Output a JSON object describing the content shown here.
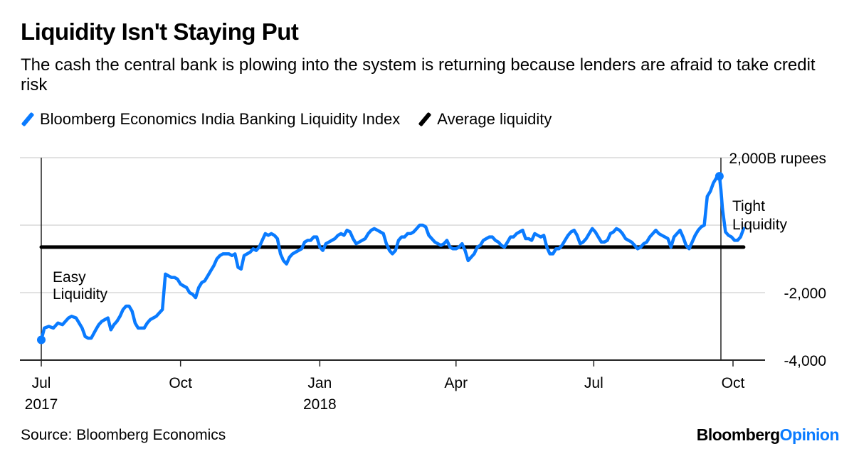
{
  "title": "Liquidity Isn't Staying Put",
  "subtitle": "The cash the central bank is plowing into the system is returning because lenders are afraid to take credit risk",
  "legend": [
    {
      "label": "Bloomberg Economics India Banking Liquidity Index",
      "color": "#0a7bff"
    },
    {
      "label": "Average liquidity",
      "color": "#000000"
    }
  ],
  "source": "Source: Bloomberg Economics",
  "brand": {
    "part1": "Bloomberg",
    "part2": "Opinion",
    "part2_color": "#0a7bff"
  },
  "chart_data": {
    "type": "line",
    "title": "Liquidity Isn't Staying Put",
    "xlabel": "",
    "ylabel": "B rupees",
    "y_unit_label": "2,000B rupees",
    "ylim": [
      -4000,
      2000
    ],
    "yticks": [
      2000,
      0,
      -2000,
      -4000
    ],
    "ytick_labels": [
      "2,000B rupees",
      "",
      "-2,000",
      "-4,000"
    ],
    "x_start": "2017-07-01",
    "x_unit": "days since 2017-07-01",
    "xlim": [
      0,
      470
    ],
    "xticks": [
      {
        "day": 0,
        "label": "Jul",
        "sub": "2017"
      },
      {
        "day": 92,
        "label": "Oct",
        "sub": ""
      },
      {
        "day": 184,
        "label": "Jan",
        "sub": "2018"
      },
      {
        "day": 274,
        "label": "Apr",
        "sub": ""
      },
      {
        "day": 365,
        "label": "Jul",
        "sub": ""
      },
      {
        "day": 457,
        "label": "Oct",
        "sub": ""
      }
    ],
    "grid": true,
    "legend_position": "top-left",
    "average_liquidity": -650,
    "reference_lines": [
      {
        "day": 0
      },
      {
        "day": 449
      }
    ],
    "annotations": [
      {
        "text": "Easy",
        "line2": "Liquidity",
        "near": "start"
      },
      {
        "text": "Tight",
        "line2": "Liquidity",
        "near": "end"
      }
    ],
    "series": [
      {
        "name": "Bloomberg Economics India Banking Liquidity Index",
        "color": "#0a7bff",
        "x": [
          0,
          2,
          5,
          8,
          11,
          14,
          16,
          18,
          20,
          23,
          25,
          27,
          29,
          31,
          33,
          36,
          38,
          40,
          42,
          44,
          46,
          48,
          50,
          52,
          54,
          56,
          58,
          60,
          62,
          64,
          66,
          68,
          70,
          72,
          74,
          76,
          78,
          80,
          82,
          84,
          86,
          88,
          90,
          92,
          94,
          96,
          98,
          100,
          102,
          104,
          106,
          108,
          110,
          112,
          114,
          116,
          118,
          120,
          122,
          124,
          126,
          128,
          130,
          132,
          134,
          136,
          138,
          140,
          142,
          144,
          146,
          148,
          150,
          152,
          154,
          156,
          158,
          160,
          162,
          164,
          166,
          168,
          170,
          172,
          174,
          176,
          178,
          180,
          182,
          184,
          186,
          188,
          190,
          192,
          194,
          196,
          198,
          200,
          202,
          204,
          206,
          208,
          210,
          212,
          214,
          216,
          218,
          220,
          222,
          224,
          226,
          228,
          230,
          232,
          234,
          236,
          238,
          240,
          242,
          244,
          246,
          248,
          250,
          252,
          254,
          256,
          258,
          260,
          262,
          264,
          266,
          268,
          270,
          272,
          274,
          276,
          278,
          280,
          282,
          284,
          286,
          288,
          290,
          292,
          294,
          296,
          298,
          300,
          302,
          304,
          306,
          308,
          310,
          312,
          314,
          316,
          318,
          320,
          322,
          324,
          326,
          328,
          330,
          332,
          334,
          336,
          338,
          340,
          342,
          344,
          346,
          348,
          350,
          352,
          354,
          356,
          358,
          360,
          362,
          364,
          366,
          368,
          370,
          372,
          374,
          376,
          378,
          380,
          382,
          384,
          386,
          388,
          390,
          392,
          394,
          396,
          398,
          400,
          402,
          404,
          406,
          408,
          410,
          412,
          414,
          416,
          418,
          420,
          422,
          424,
          426,
          428,
          430,
          432,
          434,
          436,
          438,
          440,
          442,
          444,
          446,
          448,
          449,
          450,
          452,
          454,
          456,
          458,
          460,
          462,
          464
        ],
        "values": [
          -3400,
          -3050,
          -3000,
          -3050,
          -2900,
          -2950,
          -2850,
          -2750,
          -2700,
          -2750,
          -2900,
          -3050,
          -3300,
          -3350,
          -3350,
          -3100,
          -2950,
          -2850,
          -2800,
          -2750,
          -3100,
          -2950,
          -2850,
          -2700,
          -2500,
          -2400,
          -2400,
          -2550,
          -2900,
          -3050,
          -3050,
          -3050,
          -2900,
          -2800,
          -2750,
          -2700,
          -2600,
          -2500,
          -1450,
          -1500,
          -1550,
          -1550,
          -1600,
          -1750,
          -1800,
          -1850,
          -2000,
          -2050,
          -2150,
          -1850,
          -1700,
          -1650,
          -1500,
          -1350,
          -1200,
          -1000,
          -900,
          -850,
          -850,
          -850,
          -900,
          -850,
          -1250,
          -1300,
          -900,
          -850,
          -800,
          -700,
          -750,
          -650,
          -450,
          -250,
          -300,
          -250,
          -300,
          -400,
          -850,
          -1050,
          -1150,
          -950,
          -850,
          -800,
          -750,
          -700,
          -500,
          -450,
          -450,
          -350,
          -350,
          -650,
          -750,
          -550,
          -500,
          -450,
          -400,
          -300,
          -250,
          -300,
          -150,
          -200,
          -400,
          -550,
          -500,
          -450,
          -400,
          -250,
          -150,
          -100,
          -150,
          -200,
          -250,
          -550,
          -750,
          -850,
          -750,
          -450,
          -350,
          -350,
          -250,
          -250,
          -200,
          -100,
          0,
          0,
          -50,
          -300,
          -400,
          -500,
          -550,
          -600,
          -550,
          -450,
          -650,
          -700,
          -700,
          -650,
          -550,
          -750,
          -1050,
          -950,
          -850,
          -650,
          -600,
          -450,
          -400,
          -350,
          -350,
          -450,
          -500,
          -600,
          -650,
          -500,
          -350,
          -350,
          -250,
          -200,
          -150,
          -400,
          -400,
          -450,
          -250,
          -300,
          -350,
          -300,
          -650,
          -850,
          -850,
          -700,
          -700,
          -600,
          -450,
          -300,
          -200,
          -150,
          -300,
          -550,
          -500,
          -400,
          -250,
          -100,
          -200,
          -350,
          -500,
          -500,
          -450,
          -250,
          -200,
          -100,
          -150,
          -250,
          -400,
          -450,
          -500,
          -600,
          -700,
          -650,
          -550,
          -500,
          -350,
          -250,
          -150,
          -250,
          -300,
          -350,
          -400,
          -650,
          -350,
          -250,
          -150,
          -350,
          -600,
          -700,
          -500,
          -300,
          -150,
          -50,
          0,
          850,
          1000,
          1250,
          1400,
          1450,
          1050,
          500,
          -200,
          -300,
          -350,
          -450,
          -450,
          -350,
          -100
        ]
      }
    ]
  }
}
